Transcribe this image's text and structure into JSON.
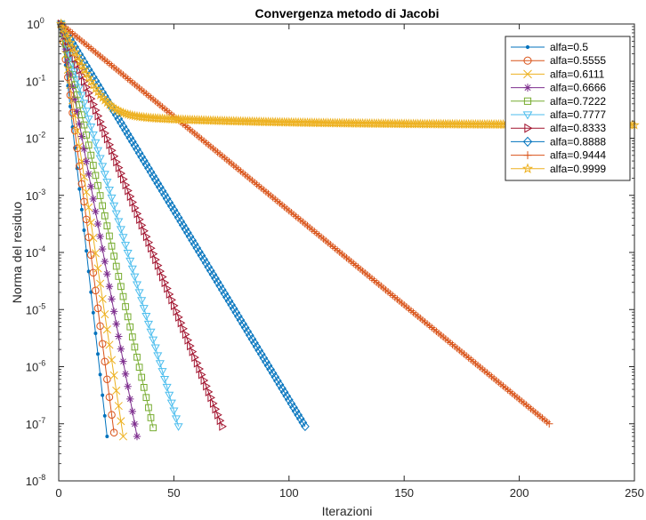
{
  "chart_data": {
    "type": "line",
    "title": "Convergenza metodo di Jacobi",
    "xlabel": "Iterazioni",
    "ylabel": "Norma del residuo",
    "xlim": [
      0,
      250
    ],
    "ylim": [
      1e-08,
      1
    ],
    "yscale": "log",
    "grid": false,
    "legend_position": "top-right",
    "x_ticks": [
      "0",
      "50",
      "100",
      "150",
      "200",
      "250"
    ],
    "y_tick_exponents": [
      "0",
      "-1",
      "-2",
      "-3",
      "-4",
      "-5",
      "-6",
      "-7",
      "-8"
    ],
    "y_tick_base": "10",
    "series": [
      {
        "name": "alfa=0.5",
        "color": "#0072BD",
        "marker": "dot",
        "x_start": 1,
        "x_end": 21,
        "y_start": 1.0,
        "y_end": 6e-08
      },
      {
        "name": "alfa=0.5555",
        "color": "#D95319",
        "marker": "circle",
        "x_start": 1,
        "x_end": 24,
        "y_start": 1.0,
        "y_end": 7e-08
      },
      {
        "name": "alfa=0.6111",
        "color": "#EDB120",
        "marker": "x",
        "x_start": 1,
        "x_end": 28,
        "y_start": 1.0,
        "y_end": 6e-08
      },
      {
        "name": "alfa=0.6666",
        "color": "#7E2F8E",
        "marker": "asterisk",
        "x_start": 1,
        "x_end": 34,
        "y_start": 1.0,
        "y_end": 6e-08
      },
      {
        "name": "alfa=0.7222",
        "color": "#77AC30",
        "marker": "square",
        "x_start": 1,
        "x_end": 41,
        "y_start": 1.0,
        "y_end": 8.5e-08
      },
      {
        "name": "alfa=0.7777",
        "color": "#4DBEEE",
        "marker": "triangle-down",
        "x_start": 1,
        "x_end": 52,
        "y_start": 1.0,
        "y_end": 9e-08
      },
      {
        "name": "alfa=0.8333",
        "color": "#A2142F",
        "marker": "triangle-right",
        "x_start": 1,
        "x_end": 71,
        "y_start": 1.0,
        "y_end": 9e-08
      },
      {
        "name": "alfa=0.8888",
        "color": "#0072BD",
        "marker": "diamond",
        "x_start": 1,
        "x_end": 107,
        "y_start": 1.0,
        "y_end": 9e-08
      },
      {
        "name": "alfa=0.9444",
        "color": "#D95319",
        "marker": "plus",
        "x_start": 1,
        "x_end": 213,
        "y_start": 1.0,
        "y_end": 1e-07
      },
      {
        "name": "alfa=0.9999",
        "color": "#EDB120",
        "marker": "pentagram",
        "x_start": 1,
        "x_end": 250,
        "y_start": 1.0,
        "y_end": 0.017,
        "shape": "saturating"
      }
    ]
  }
}
